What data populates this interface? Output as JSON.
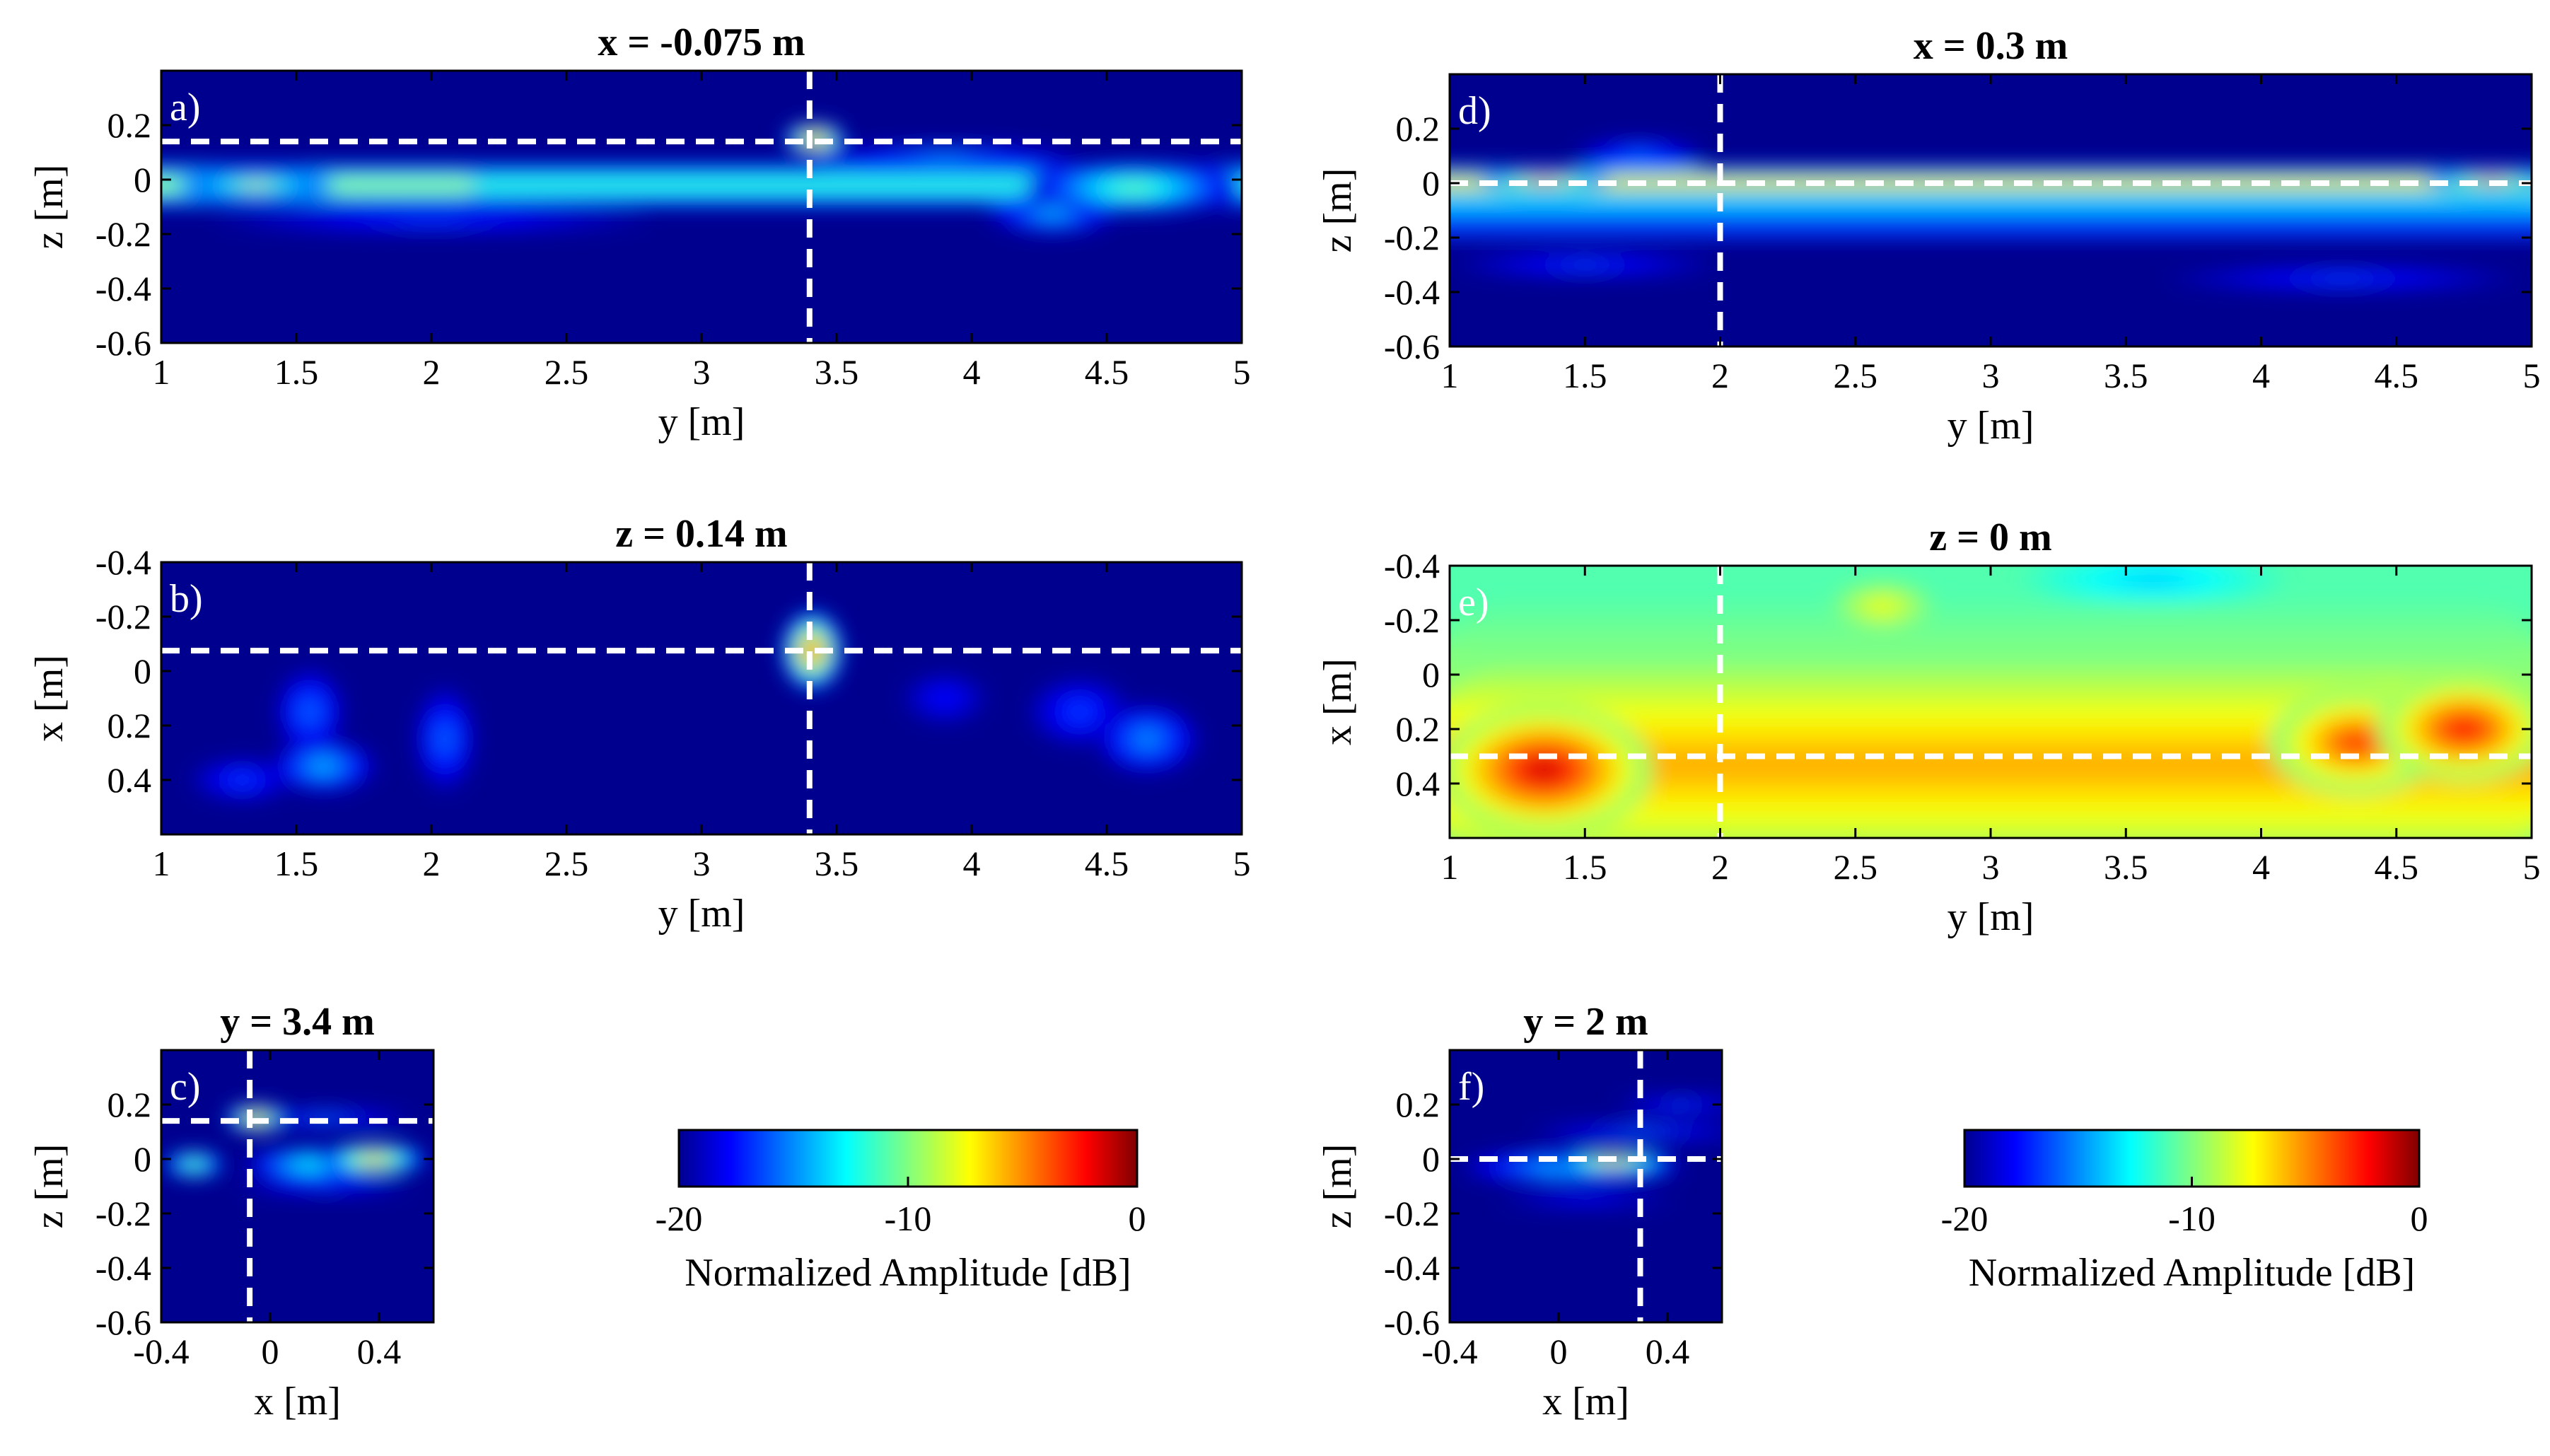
{
  "chart_data": {
    "type": "heatmap",
    "colormap": "jet",
    "colors": {
      "cut_line": "#ffffff",
      "background": "#00008f"
    },
    "panels": [
      {
        "id": "a",
        "tag": "a)",
        "title": "x = -0.075 m",
        "xlabel": "y [m]",
        "ylabel": "z [m]",
        "xlim": [
          1,
          5
        ],
        "ylim": [
          -0.6,
          0.4
        ],
        "y_reversed": false,
        "xticks": [
          "1",
          "1.5",
          "2",
          "2.5",
          "3",
          "3.5",
          "4",
          "4.5",
          "5"
        ],
        "yticks": [
          "0.2",
          "0",
          "-0.2",
          "-0.4",
          "-0.6"
        ],
        "cut_lines": {
          "vertical": 3.4,
          "horizontal": 0.14
        },
        "background_db": -20,
        "features": [
          {
            "x0": 1.0,
            "x1": 5.0,
            "y": -0.02,
            "sx": 0.6,
            "sy": 0.035,
            "db": -10,
            "band": true
          },
          {
            "x0": 1.0,
            "x1": 2.0,
            "y": -0.02,
            "sx": 0.3,
            "sy": 0.03,
            "db": -7,
            "band": true
          },
          {
            "x": 1.35,
            "y": -0.02,
            "sx": 0.18,
            "sy": 0.025,
            "db": -6
          },
          {
            "x": 3.42,
            "y": 0.15,
            "sx": 0.07,
            "sy": 0.035,
            "db": 0
          },
          {
            "x": 4.6,
            "y": -0.03,
            "sx": 0.25,
            "sy": 0.06,
            "db": -9
          },
          {
            "x": 4.3,
            "y": -0.12,
            "sx": 0.15,
            "sy": 0.05,
            "db": -13
          },
          {
            "x": 2.0,
            "y": -0.15,
            "sx": 0.5,
            "sy": 0.03,
            "db": -16
          },
          {
            "x": 3.9,
            "y": 0.08,
            "sx": 0.3,
            "sy": 0.03,
            "db": -14
          }
        ]
      },
      {
        "id": "b",
        "tag": "b)",
        "title": "z = 0.14 m",
        "xlabel": "y [m]",
        "ylabel": "x [m]",
        "xlim": [
          1,
          5
        ],
        "ylim": [
          -0.4,
          0.6
        ],
        "y_reversed": true,
        "xticks": [
          "1",
          "1.5",
          "2",
          "2.5",
          "3",
          "3.5",
          "4",
          "4.5",
          "5"
        ],
        "yticks": [
          "-0.4",
          "-0.2",
          "0",
          "0.2",
          "0.4"
        ],
        "cut_lines": {
          "vertical": 3.4,
          "horizontal": -0.075
        },
        "background_db": -20,
        "features": [
          {
            "x": 3.41,
            "y": -0.075,
            "sx": 0.07,
            "sy": 0.09,
            "db": 0
          },
          {
            "x": 1.6,
            "y": 0.35,
            "sx": 0.12,
            "sy": 0.06,
            "db": -13
          },
          {
            "x": 1.55,
            "y": 0.15,
            "sx": 0.08,
            "sy": 0.1,
            "db": -15
          },
          {
            "x": 2.05,
            "y": 0.25,
            "sx": 0.07,
            "sy": 0.12,
            "db": -15
          },
          {
            "x": 4.65,
            "y": 0.25,
            "sx": 0.12,
            "sy": 0.08,
            "db": -14
          },
          {
            "x": 4.4,
            "y": 0.15,
            "sx": 0.12,
            "sy": 0.08,
            "db": -16
          },
          {
            "x": 1.3,
            "y": 0.4,
            "sx": 0.12,
            "sy": 0.05,
            "db": -16
          },
          {
            "x": 3.9,
            "y": 0.1,
            "sx": 0.1,
            "sy": 0.06,
            "db": -17
          }
        ]
      },
      {
        "id": "c",
        "tag": "c)",
        "title": "y = 3.4 m",
        "xlabel": "x [m]",
        "ylabel": "z [m]",
        "xlim": [
          -0.4,
          0.6
        ],
        "ylim": [
          -0.6,
          0.4
        ],
        "y_reversed": false,
        "xticks": [
          "-0.4",
          "0",
          "0.4"
        ],
        "yticks": [
          "0.2",
          "0",
          "-0.2",
          "-0.4",
          "-0.6"
        ],
        "cut_lines": {
          "vertical": -0.075,
          "horizontal": 0.14
        },
        "background_db": -20,
        "features": [
          {
            "x": -0.05,
            "y": 0.15,
            "sx": 0.07,
            "sy": 0.03,
            "db": -1
          },
          {
            "x": 0.38,
            "y": 0.0,
            "sx": 0.12,
            "sy": 0.035,
            "db": -3
          },
          {
            "x": -0.28,
            "y": -0.02,
            "sx": 0.07,
            "sy": 0.03,
            "db": -8
          },
          {
            "x": 0.15,
            "y": -0.02,
            "sx": 0.15,
            "sy": 0.04,
            "db": -11
          },
          {
            "x": 0.2,
            "y": 0.15,
            "sx": 0.2,
            "sy": 0.02,
            "db": -15
          },
          {
            "x": 0.2,
            "y": -0.1,
            "sx": 0.2,
            "sy": 0.02,
            "db": -16
          }
        ]
      },
      {
        "id": "d",
        "tag": "d)",
        "title": "x = 0.3 m",
        "xlabel": "y [m]",
        "ylabel": "z [m]",
        "xlim": [
          1,
          5
        ],
        "ylim": [
          -0.6,
          0.4
        ],
        "y_reversed": false,
        "xticks": [
          "1",
          "1.5",
          "2",
          "2.5",
          "3",
          "3.5",
          "4",
          "4.5",
          "5"
        ],
        "yticks": [
          "0.2",
          "0",
          "-0.2",
          "-0.4",
          "-0.6"
        ],
        "cut_lines": {
          "vertical": 2.0,
          "horizontal": 0.0
        },
        "background_db": -20,
        "features": [
          {
            "x0": 1.0,
            "x1": 5.0,
            "y": 0.0,
            "sx": 0.5,
            "sy": 0.025,
            "db": -3,
            "band": true
          },
          {
            "x0": 1.0,
            "x1": 5.0,
            "y": -0.08,
            "sx": 0.5,
            "sy": 0.03,
            "db": -12,
            "band": true
          },
          {
            "x": 1.35,
            "y": 0.01,
            "sx": 0.15,
            "sy": 0.02,
            "db": 0
          },
          {
            "x": 4.85,
            "y": 0.01,
            "sx": 0.15,
            "sy": 0.02,
            "db": -1
          },
          {
            "x0": 1.0,
            "x1": 5.0,
            "y": -0.16,
            "sx": 0.4,
            "sy": 0.02,
            "db": -15,
            "band": true
          },
          {
            "x": 1.5,
            "y": -0.3,
            "sx": 0.3,
            "sy": 0.03,
            "db": -16
          },
          {
            "x": 4.3,
            "y": -0.35,
            "sx": 0.4,
            "sy": 0.03,
            "db": -16
          },
          {
            "x": 1.7,
            "y": 0.1,
            "sx": 0.15,
            "sy": 0.04,
            "db": -15
          }
        ]
      },
      {
        "id": "e",
        "tag": "e)",
        "title": "z = 0 m",
        "xlabel": "y [m]",
        "ylabel": "x [m]",
        "xlim": [
          1,
          5
        ],
        "ylim": [
          -0.4,
          0.6
        ],
        "y_reversed": true,
        "xticks": [
          "1",
          "1.5",
          "2",
          "2.5",
          "3",
          "3.5",
          "4",
          "4.5",
          "5"
        ],
        "yticks": [
          "-0.4",
          "-0.2",
          "0",
          "0.2",
          "0.4"
        ],
        "cut_lines": {
          "vertical": 2.0,
          "horizontal": 0.3
        },
        "background_db": -11,
        "features": [
          {
            "x0": 1.0,
            "x1": 5.0,
            "y": 0.33,
            "sx": 0.5,
            "sy": 0.18,
            "db": -5,
            "band": true
          },
          {
            "x0": 1.0,
            "x1": 5.0,
            "y": 0.1,
            "sx": 0.5,
            "sy": 0.15,
            "db": -9,
            "band": true
          },
          {
            "x": 1.35,
            "y": 0.35,
            "sx": 0.25,
            "sy": 0.15,
            "db": 0
          },
          {
            "x": 4.75,
            "y": 0.2,
            "sx": 0.2,
            "sy": 0.12,
            "db": -1
          },
          {
            "x": 4.35,
            "y": 0.25,
            "sx": 0.2,
            "sy": 0.12,
            "db": -2
          },
          {
            "x": 1.75,
            "y": 0.3,
            "sx": 0.12,
            "sy": 0.2,
            "db": -9,
            "cool": true
          },
          {
            "x": 3.5,
            "y": -0.1,
            "sx": 0.15,
            "sy": 0.07,
            "db": -20,
            "cool": true
          },
          {
            "x": 4.15,
            "y": -0.15,
            "sx": 0.1,
            "sy": 0.06,
            "db": -20,
            "cool": true
          },
          {
            "x": 4.8,
            "y": -0.1,
            "sx": 0.07,
            "sy": 0.08,
            "db": -20,
            "cool": true
          },
          {
            "x": 2.6,
            "y": -0.25,
            "sx": 0.12,
            "sy": 0.06,
            "db": -7
          },
          {
            "x": 3.6,
            "y": -0.35,
            "sx": 0.3,
            "sy": 0.07,
            "db": -14,
            "cool": true
          },
          {
            "x": 2.1,
            "y": -0.05,
            "sx": 0.15,
            "sy": 0.08,
            "db": -14,
            "cool": true
          }
        ]
      },
      {
        "id": "f",
        "tag": "f)",
        "title": "y = 2 m",
        "xlabel": "x [m]",
        "ylabel": "z [m]",
        "xlim": [
          -0.4,
          0.6
        ],
        "ylim": [
          -0.6,
          0.4
        ],
        "y_reversed": false,
        "xticks": [
          "-0.4",
          "0",
          "0.4"
        ],
        "yticks": [
          "0.2",
          "0",
          "-0.2",
          "-0.4",
          "-0.6"
        ],
        "cut_lines": {
          "vertical": 0.3,
          "horizontal": 0.0
        },
        "background_db": -20,
        "features": [
          {
            "x": 0.2,
            "y": -0.01,
            "sx": 0.14,
            "sy": 0.025,
            "db": -3
          },
          {
            "x": 0.05,
            "y": -0.03,
            "sx": 0.25,
            "sy": 0.04,
            "db": -12
          },
          {
            "x": 0.3,
            "y": 0.1,
            "sx": 0.25,
            "sy": 0.02,
            "db": -15
          },
          {
            "x": 0.45,
            "y": 0.2,
            "sx": 0.15,
            "sy": 0.02,
            "db": -16
          },
          {
            "x": 0.1,
            "y": -0.15,
            "sx": 0.2,
            "sy": 0.02,
            "db": -17
          }
        ]
      }
    ],
    "colorbars": [
      {
        "id": "cb1",
        "label": "Normalized Amplitude [dB]",
        "range": [
          -20,
          0
        ],
        "ticks": [
          "-20",
          "-10",
          "0"
        ]
      },
      {
        "id": "cb2",
        "label": "Normalized Amplitude [dB]",
        "range": [
          -20,
          0
        ],
        "ticks": [
          "-20",
          "-10",
          "0"
        ]
      }
    ]
  }
}
